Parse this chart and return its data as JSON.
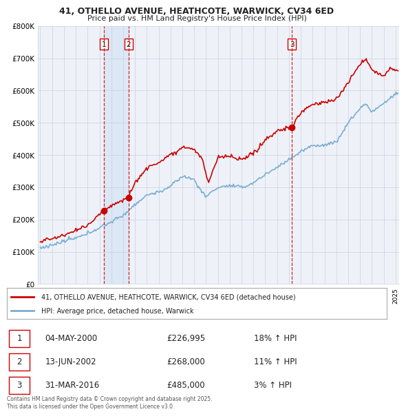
{
  "title1": "41, OTHELLO AVENUE, HEATHCOTE, WARWICK, CV34 6ED",
  "title2": "Price paid vs. HM Land Registry's House Price Index (HPI)",
  "legend_line1": "41, OTHELLO AVENUE, HEATHCOTE, WARWICK, CV34 6ED (detached house)",
  "legend_line2": "HPI: Average price, detached house, Warwick",
  "transactions": [
    {
      "num": 1,
      "date": "04-MAY-2000",
      "price": "£226,995",
      "hpi": "18% ↑ HPI",
      "year": 2000.37,
      "value": 226995
    },
    {
      "num": 2,
      "date": "13-JUN-2002",
      "price": "£268,000",
      "hpi": "11% ↑ HPI",
      "year": 2002.45,
      "value": 268000
    },
    {
      "num": 3,
      "date": "31-MAR-2016",
      "price": "£485,000",
      "hpi": "3% ↑ HPI",
      "year": 2016.25,
      "value": 485000
    }
  ],
  "footer": "Contains HM Land Registry data © Crown copyright and database right 2025.\nThis data is licensed under the Open Government Licence v3.0.",
  "red_color": "#cc0000",
  "blue_color": "#7aadd4",
  "shade_color": "#dce8f5",
  "bg_color": "#ffffff",
  "plot_bg": "#eef2f8",
  "grid_color": "#c8cfe0",
  "ylim": [
    0,
    800000
  ],
  "xlim_start": 1994.8,
  "xlim_end": 2025.3
}
